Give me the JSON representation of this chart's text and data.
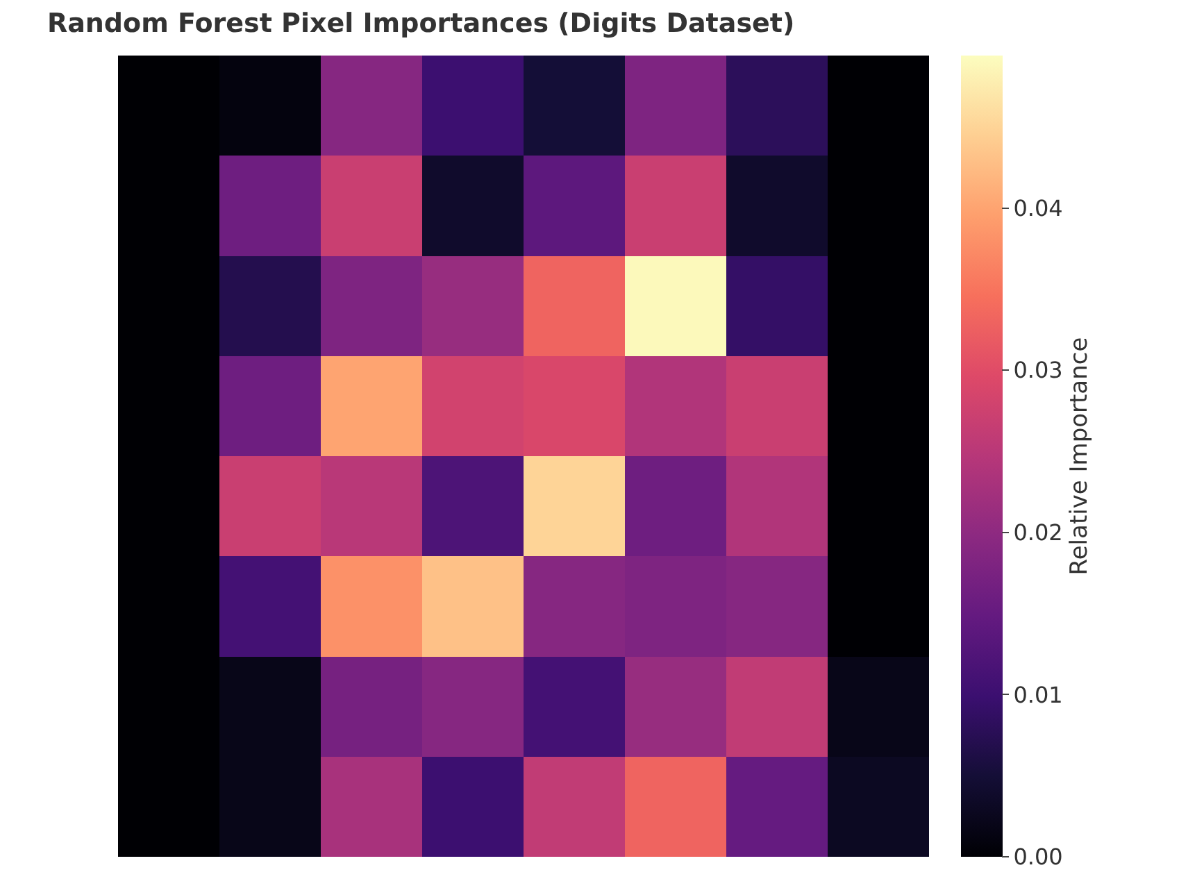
{
  "chart_data": {
    "type": "heatmap",
    "title": "Random Forest Pixel Importances (Digits Dataset)",
    "clabel": "Relative Importance",
    "categories": [
      null,
      null,
      null,
      null,
      null,
      null,
      null,
      null
    ],
    "y_categories": [
      null,
      null,
      null,
      null,
      null,
      null,
      null,
      null
    ],
    "cells": [
      [
        0,
        0.001,
        0.019,
        0.01,
        0.005,
        0.018,
        0.008,
        0
      ],
      [
        0,
        0.016,
        0.027,
        0.004,
        0.014,
        0.027,
        0.004,
        0
      ],
      [
        0,
        0.007,
        0.018,
        0.021,
        0.033,
        0.049,
        0.009,
        0
      ],
      [
        0,
        0.016,
        0.04,
        0.028,
        0.029,
        0.024,
        0.027,
        0
      ],
      [
        0,
        0.027,
        0.025,
        0.012,
        0.045,
        0.016,
        0.024,
        0
      ],
      [
        0,
        0.011,
        0.038,
        0.043,
        0.019,
        0.018,
        0.019,
        0
      ],
      [
        0,
        0.002,
        0.017,
        0.019,
        0.011,
        0.021,
        0.026,
        0.002
      ],
      [
        0,
        0.002,
        0.023,
        0.01,
        0.026,
        0.033,
        0.015,
        0.003
      ]
    ],
    "clim": [
      0,
      0.0494
    ],
    "cticks": [
      {
        "value": 0,
        "label": "0.00"
      },
      {
        "value": 0.01,
        "label": "0.01"
      },
      {
        "value": 0.02,
        "label": "0.02"
      },
      {
        "value": 0.03,
        "label": "0.03"
      },
      {
        "value": 0.04,
        "label": "0.04"
      }
    ]
  }
}
